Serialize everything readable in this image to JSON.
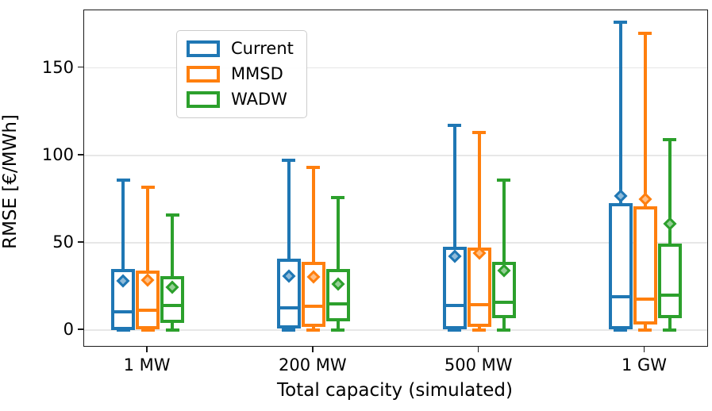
{
  "chart_data": {
    "type": "boxplot",
    "xlabel": "Total capacity (simulated)",
    "ylabel": "RMSE [€/MWh]",
    "categories": [
      "1 MW",
      "200 MW",
      "500 MW",
      "1 GW"
    ],
    "yticks": [
      0,
      50,
      100,
      150
    ],
    "ylim": [
      -9,
      183
    ],
    "grid": "horizontal-light",
    "legend_position": "upper-left",
    "series": [
      {
        "name": "Current",
        "color": "#1f77b4",
        "mean_fill": "#8fbbd9",
        "boxes": [
          {
            "category": "1 MW",
            "whislo": 0,
            "q1": 1.0,
            "med": 10.5,
            "q3": 34.0,
            "whishi": 86,
            "mean": 28.0
          },
          {
            "category": "200 MW",
            "whislo": 0,
            "q1": 2.0,
            "med": 13.0,
            "q3": 40.0,
            "whishi": 97,
            "mean": 31.0
          },
          {
            "category": "500 MW",
            "whislo": 0,
            "q1": 1.5,
            "med": 14.0,
            "q3": 47.0,
            "whishi": 117,
            "mean": 42.5
          },
          {
            "category": "1 GW",
            "whislo": 0,
            "q1": 1.5,
            "med": 19.0,
            "q3": 72.0,
            "whishi": 176,
            "mean": 77.0
          }
        ]
      },
      {
        "name": "MMSD",
        "color": "#ff7f0e",
        "mean_fill": "#ffbf86",
        "boxes": [
          {
            "category": "1 MW",
            "whislo": 0,
            "q1": 1.5,
            "med": 11.5,
            "q3": 33.0,
            "whishi": 82,
            "mean": 28.5
          },
          {
            "category": "200 MW",
            "whislo": 0,
            "q1": 3.0,
            "med": 13.5,
            "q3": 38.0,
            "whishi": 93,
            "mean": 30.5
          },
          {
            "category": "500 MW",
            "whislo": 0,
            "q1": 3.0,
            "med": 14.5,
            "q3": 46.5,
            "whishi": 113,
            "mean": 44.0
          },
          {
            "category": "1 GW",
            "whislo": 0,
            "q1": 4.0,
            "med": 18.0,
            "q3": 70.0,
            "whishi": 170,
            "mean": 75.0
          }
        ]
      },
      {
        "name": "WADW",
        "color": "#2ca02c",
        "mean_fill": "#96cf96",
        "boxes": [
          {
            "category": "1 MW",
            "whislo": 0,
            "q1": 5.0,
            "med": 14.0,
            "q3": 30.0,
            "whishi": 66,
            "mean": 24.5
          },
          {
            "category": "200 MW",
            "whislo": 0,
            "q1": 6.0,
            "med": 15.0,
            "q3": 34.0,
            "whishi": 76,
            "mean": 26.5
          },
          {
            "category": "500 MW",
            "whislo": 0,
            "q1": 8.0,
            "med": 16.0,
            "q3": 38.0,
            "whishi": 86,
            "mean": 34.0
          },
          {
            "category": "1 GW",
            "whislo": 0,
            "q1": 8.0,
            "med": 20.0,
            "q3": 48.5,
            "whishi": 109,
            "mean": 61.0
          }
        ]
      }
    ]
  }
}
